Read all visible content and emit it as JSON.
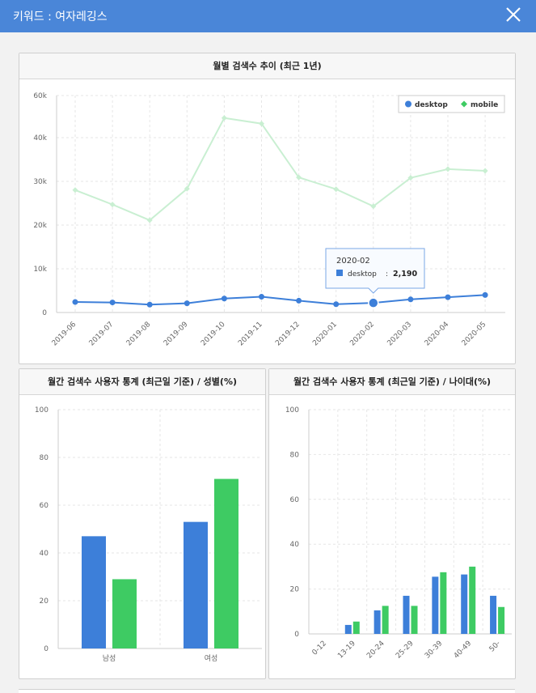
{
  "window": {
    "title": "키워드 : 여자레깅스",
    "close_icon": "close-icon"
  },
  "colors": {
    "header": "#4a86d8",
    "desktop": "#3d7fd9",
    "mobile": "#3ecb63",
    "mobile_line": "#c9efd2"
  },
  "chart_data": [
    {
      "type": "line",
      "title": "월별 검색수 추이 (최근 1년)",
      "x": [
        "2019-06",
        "2019-07",
        "2019-08",
        "2019-09",
        "2019-10",
        "2019-11",
        "2019-12",
        "2020-01",
        "2020-02",
        "2020-03",
        "2020-04",
        "2020-05"
      ],
      "series": [
        {
          "name": "desktop",
          "values": [
            2400,
            2300,
            1800,
            2100,
            3200,
            3600,
            2700,
            1900,
            2190,
            3000,
            3500,
            4000
          ]
        },
        {
          "name": "mobile",
          "values": [
            28000,
            24700,
            21100,
            28300,
            44500,
            43200,
            30900,
            28200,
            24300,
            30800,
            32800,
            32400
          ]
        }
      ],
      "yticks": [
        "0",
        "10k",
        "20k",
        "30k",
        "40k",
        "60k"
      ],
      "ylim": [
        0,
        50000
      ],
      "grid": true,
      "legend_position": "top-right",
      "tooltip": {
        "title": "2020-02",
        "series": "desktop",
        "value": "2,190",
        "index": 8
      }
    },
    {
      "type": "bar",
      "title": "월간 검색수 사용자 통계 (최근일 기준) / 성별(%)",
      "categories": [
        "남성",
        "여성"
      ],
      "series": [
        {
          "name": "desktop",
          "values": [
            47,
            53
          ]
        },
        {
          "name": "mobile",
          "values": [
            29,
            71
          ]
        }
      ],
      "yticks": [
        "0",
        "20",
        "40",
        "60",
        "80",
        "100"
      ],
      "ylim": [
        0,
        100
      ],
      "grid": true
    },
    {
      "type": "bar",
      "title": "월간 검색수 사용자 통계 (최근일 기준) / 나이대(%)",
      "categories": [
        "0-12",
        "13-19",
        "20-24",
        "25-29",
        "30-39",
        "40-49",
        "50-"
      ],
      "series": [
        {
          "name": "desktop",
          "values": [
            0,
            4,
            10.5,
            17,
            25.5,
            26.5,
            17
          ]
        },
        {
          "name": "mobile",
          "values": [
            0,
            5.5,
            12.5,
            12.5,
            27.5,
            30,
            12
          ]
        }
      ],
      "yticks": [
        "0",
        "20",
        "40",
        "60",
        "80",
        "100"
      ],
      "ylim": [
        0,
        100
      ],
      "grid": true
    }
  ]
}
